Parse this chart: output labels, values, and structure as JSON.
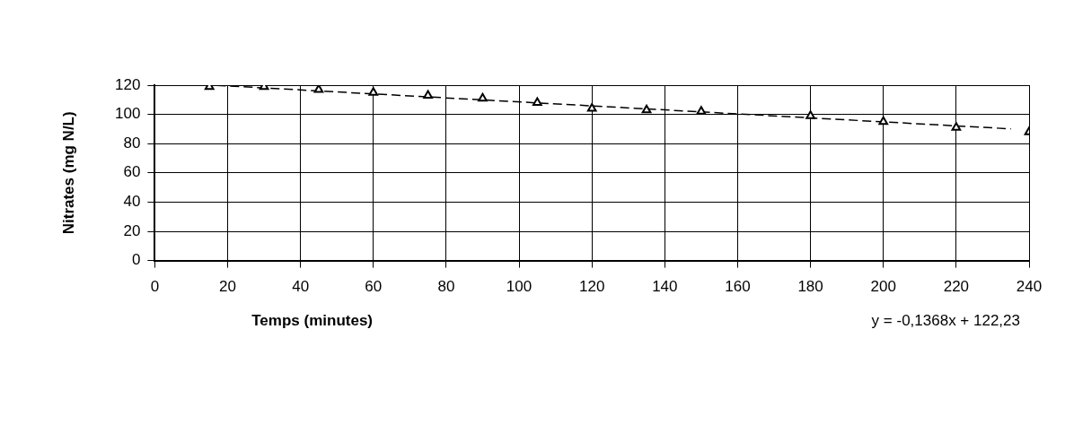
{
  "chart_data": {
    "type": "scatter",
    "xlabel": "Temps (minutes)",
    "ylabel": "Nitrates (mg N/L)",
    "x": [
      15,
      30,
      45,
      60,
      75,
      90,
      105,
      120,
      135,
      150,
      180,
      200,
      220,
      240
    ],
    "series": [
      {
        "color": "#000000",
        "marker": "triangle",
        "values": [
          119,
          119,
          117,
          115,
          113,
          111,
          108,
          104,
          103,
          102,
          99,
          95,
          91,
          88
        ]
      },
      {
        "type": "line",
        "color": "#000000",
        "line_style": "dashed",
        "marker": "none",
        "x": [
          17,
          235
        ],
        "values": [
          119.9,
          90.1
        ]
      }
    ],
    "xlim": [
      0,
      240
    ],
    "xticks": [
      0,
      20,
      40,
      60,
      80,
      100,
      120,
      140,
      160,
      180,
      200,
      220,
      240
    ],
    "ylim": [
      0,
      120
    ],
    "yticks": [
      0,
      20,
      40,
      60,
      80,
      100,
      120
    ],
    "grid": true,
    "legend": false,
    "annotations": [
      "y = -0,1368x + 122,23"
    ]
  }
}
